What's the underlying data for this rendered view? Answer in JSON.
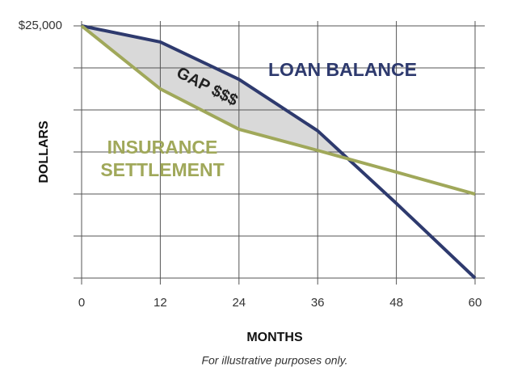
{
  "chart_data": {
    "type": "line",
    "x": [
      0,
      12,
      24,
      36,
      48,
      60
    ],
    "series": [
      {
        "name": "LOAN BALANCE",
        "color": "#2e3a6e",
        "values": [
          25000,
          23400,
          19700,
          14600,
          7400,
          0
        ]
      },
      {
        "name": "INSURANCE SETTLEMENT",
        "color": "#a0a85a",
        "values": [
          25000,
          18750,
          14750,
          12650,
          10500,
          8330
        ]
      }
    ],
    "xlim": [
      0,
      60
    ],
    "xticks": [
      0,
      12,
      24,
      36,
      48,
      60
    ],
    "ylim": [
      0,
      25000
    ],
    "yticks": [
      {
        "value": 0,
        "label": null
      },
      {
        "value": 4166.67,
        "label": null
      },
      {
        "value": 8333.33,
        "label": null
      },
      {
        "value": 12500,
        "label": null
      },
      {
        "value": 16666.67,
        "label": null
      },
      {
        "value": 20833.33,
        "label": null
      },
      {
        "value": 25000,
        "label": "$25,000"
      }
    ],
    "grid": true,
    "xlabel": "MONTHS",
    "ylabel": "DOLLARS",
    "annotations": [
      "GAP $$$",
      "INSURANCE",
      "SETTLEMENT"
    ],
    "gap_color": "#d9d9d9",
    "note": "For illustrative purposes only."
  }
}
